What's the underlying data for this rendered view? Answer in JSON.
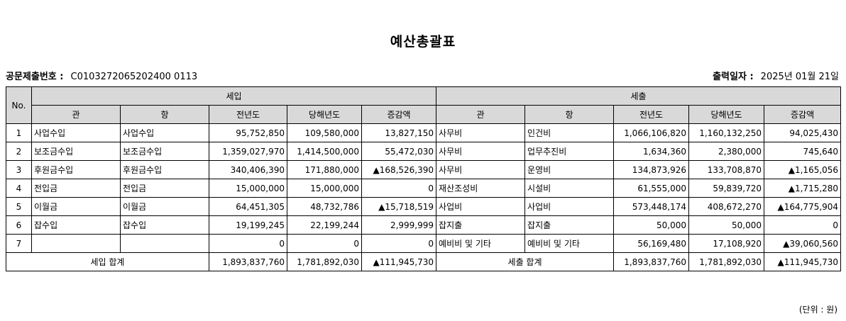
{
  "title": "예산총괄표",
  "doc_no_label": "공문제출번호 :",
  "doc_no_value": "C0103272065202400 0113",
  "print_date_label": "출력일자 :",
  "print_date_value": "2025년 01월 21일",
  "headers": {
    "no": "No.",
    "revenue": "세입",
    "expenditure": "세출",
    "cols": [
      "관",
      "항",
      "전년도",
      "당해년도",
      "증감액"
    ]
  },
  "rows": [
    {
      "no": "1",
      "r_gwan": "사업수입",
      "r_hang": "사업수입",
      "r_prev": "95,752,850",
      "r_cur": "109,580,000",
      "r_diff": "13,827,150",
      "e_gwan": "사무비",
      "e_hang": "인건비",
      "e_prev": "1,066,106,820",
      "e_cur": "1,160,132,250",
      "e_diff": "94,025,430"
    },
    {
      "no": "2",
      "r_gwan": "보조금수입",
      "r_hang": "보조금수입",
      "r_prev": "1,359,027,970",
      "r_cur": "1,414,500,000",
      "r_diff": "55,472,030",
      "e_gwan": "사무비",
      "e_hang": "업무추진비",
      "e_prev": "1,634,360",
      "e_cur": "2,380,000",
      "e_diff": "745,640"
    },
    {
      "no": "3",
      "r_gwan": "후원금수입",
      "r_hang": "후원금수입",
      "r_prev": "340,406,390",
      "r_cur": "171,880,000",
      "r_diff": "▲168,526,390",
      "e_gwan": "사무비",
      "e_hang": "운영비",
      "e_prev": "134,873,926",
      "e_cur": "133,708,870",
      "e_diff": "▲1,165,056"
    },
    {
      "no": "4",
      "r_gwan": "전입금",
      "r_hang": "전입금",
      "r_prev": "15,000,000",
      "r_cur": "15,000,000",
      "r_diff": "0",
      "e_gwan": "재산조성비",
      "e_hang": "시설비",
      "e_prev": "61,555,000",
      "e_cur": "59,839,720",
      "e_diff": "▲1,715,280"
    },
    {
      "no": "5",
      "r_gwan": "이월금",
      "r_hang": "이월금",
      "r_prev": "64,451,305",
      "r_cur": "48,732,786",
      "r_diff": "▲15,718,519",
      "e_gwan": "사업비",
      "e_hang": "사업비",
      "e_prev": "573,448,174",
      "e_cur": "408,672,270",
      "e_diff": "▲164,775,904"
    },
    {
      "no": "6",
      "r_gwan": "잡수입",
      "r_hang": "잡수입",
      "r_prev": "19,199,245",
      "r_cur": "22,199,244",
      "r_diff": "2,999,999",
      "e_gwan": "잡지출",
      "e_hang": "잡지출",
      "e_prev": "50,000",
      "e_cur": "50,000",
      "e_diff": "0"
    },
    {
      "no": "7",
      "r_gwan": "",
      "r_hang": "",
      "r_prev": "0",
      "r_cur": "0",
      "r_diff": "0",
      "e_gwan": "예비비 및 기타",
      "e_hang": "예비비 및 기타",
      "e_prev": "56,169,480",
      "e_cur": "17,108,920",
      "e_diff": "▲39,060,560"
    }
  ],
  "totals": {
    "r_label": "세입 합계",
    "r_prev": "1,893,837,760",
    "r_cur": "1,781,892,030",
    "r_diff": "▲111,945,730",
    "e_label": "세출 합계",
    "e_prev": "1,893,837,760",
    "e_cur": "1,781,892,030",
    "e_diff": "▲111,945,730"
  },
  "unit": "(단위 : 원)"
}
